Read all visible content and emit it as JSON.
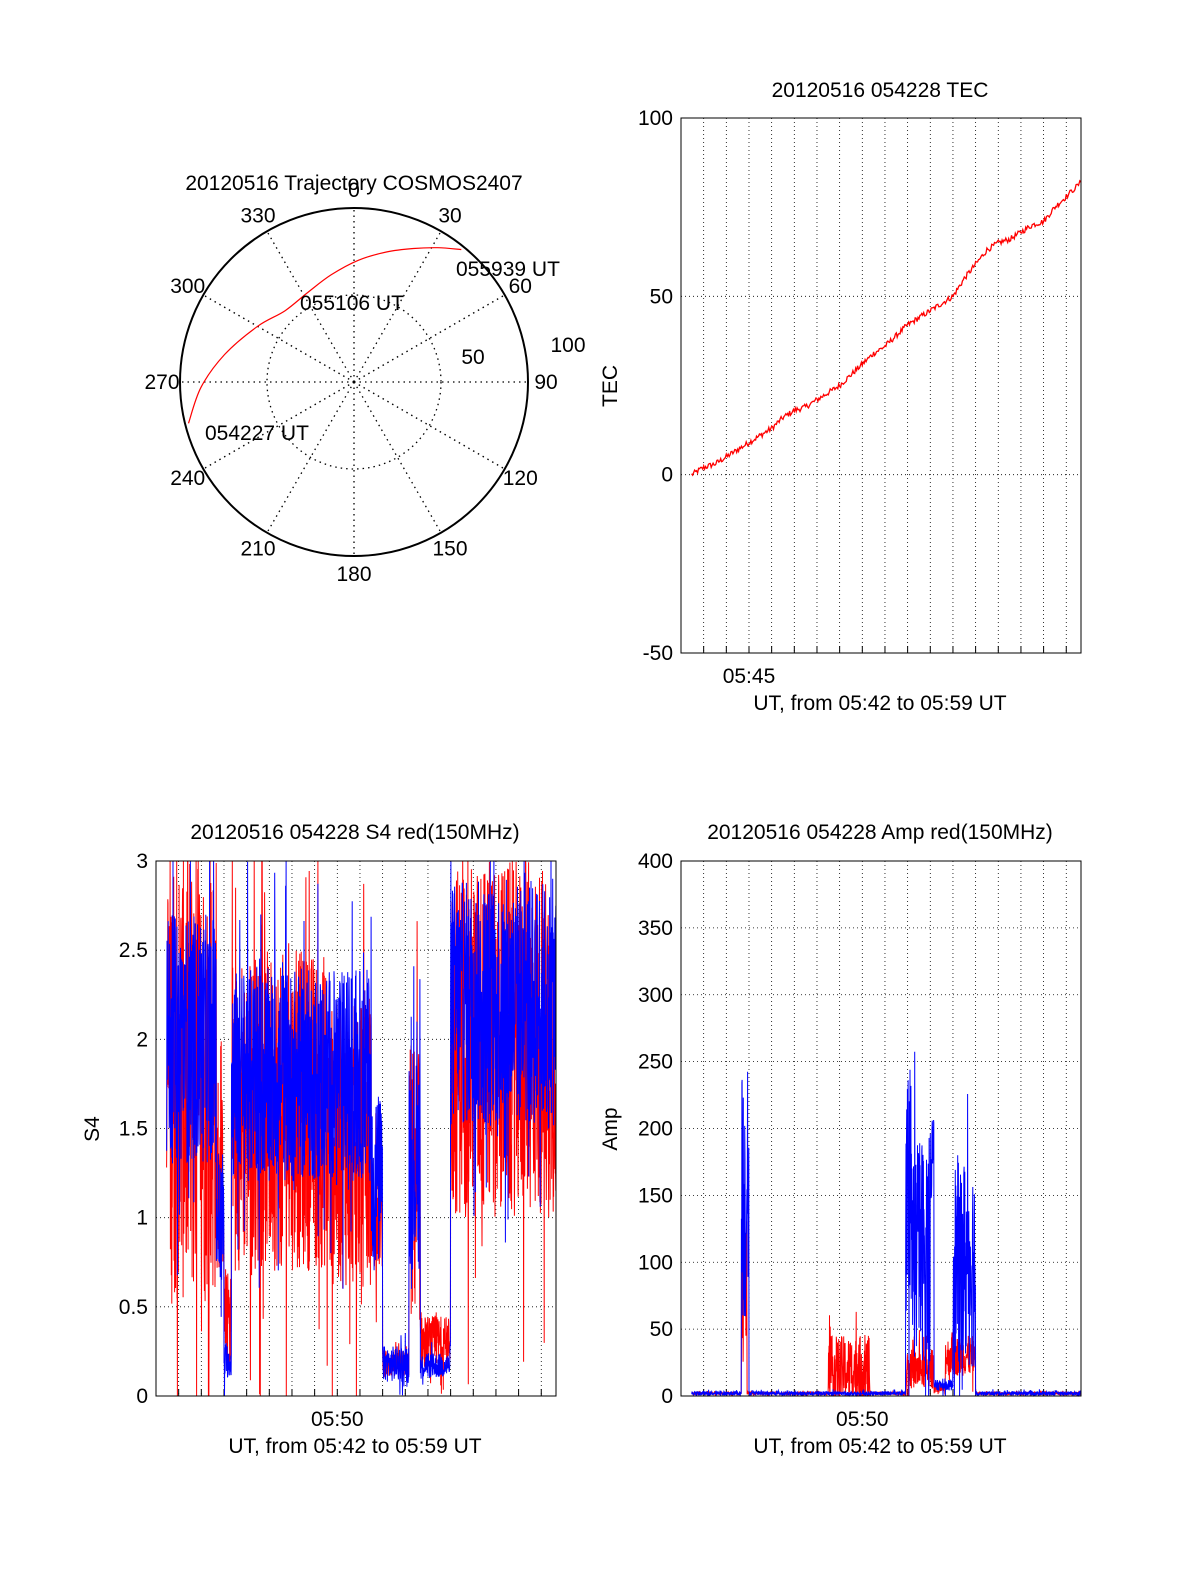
{
  "colors": {
    "red": "#ff0000",
    "blue": "#0000ff",
    "axis": "#000000"
  },
  "chart_data": [
    {
      "id": "trajectory",
      "type": "polar",
      "title": "20120516 Trajectory COSMOS2407",
      "azimuth_labels": [
        "0",
        "30",
        "60",
        "90",
        "120",
        "150",
        "180",
        "210",
        "240",
        "270",
        "300",
        "330"
      ],
      "radial_labels": [
        "50",
        "100"
      ],
      "rlim": [
        0,
        100
      ],
      "grid": true,
      "series": [
        {
          "color": "#ff0000",
          "points": [
            {
              "az": 256,
              "r": 98
            },
            {
              "az": 268,
              "r": 88
            },
            {
              "az": 282,
              "r": 76
            },
            {
              "az": 300,
              "r": 64
            },
            {
              "az": 316,
              "r": 57
            },
            {
              "az": 333,
              "r": 58
            },
            {
              "az": 348,
              "r": 63
            },
            {
              "az": 2,
              "r": 70
            },
            {
              "az": 14,
              "r": 77
            },
            {
              "az": 24,
              "r": 84
            },
            {
              "az": 32,
              "r": 91
            },
            {
              "az": 39,
              "r": 98
            }
          ]
        }
      ],
      "annotations": [
        {
          "text": "055939 UT",
          "az": 39,
          "r": 98
        },
        {
          "text": "055106 UT",
          "az": 316,
          "r": 57
        },
        {
          "text": "054227 UT",
          "az": 256,
          "r": 98
        }
      ]
    },
    {
      "id": "tec",
      "type": "line",
      "title": "20120516 054228 TEC",
      "xlabel": "UT, from 05:42 to 05:59 UT",
      "ylabel": "TEC",
      "xlim": [
        "05:42:00",
        "05:59:39"
      ],
      "ylim": [
        -50,
        100
      ],
      "yticks": [
        "100",
        "50",
        "0",
        "-50"
      ],
      "xtick_labels": [
        {
          "label": "05:45",
          "t": "05:45"
        }
      ],
      "grid": true,
      "series": [
        {
          "color": "#ff0000",
          "t": [
            "05:42:28",
            "05:43:00",
            "05:43:30",
            "05:44:00",
            "05:44:30",
            "05:45:00",
            "05:45:30",
            "05:46:00",
            "05:46:30",
            "05:47:00",
            "05:47:30",
            "05:48:00",
            "05:48:30",
            "05:49:00",
            "05:49:30",
            "05:50:00",
            "05:50:30",
            "05:51:00",
            "05:51:30",
            "05:52:00",
            "05:52:30",
            "05:53:00",
            "05:53:30",
            "05:54:00",
            "05:54:30",
            "05:55:00",
            "05:55:30",
            "05:56:00",
            "05:56:30",
            "05:57:00",
            "05:57:30",
            "05:58:00",
            "05:58:30",
            "05:59:00",
            "05:59:39"
          ],
          "values": [
            0,
            2,
            3,
            5,
            7,
            9,
            11,
            13,
            16,
            18,
            19,
            21,
            23,
            25,
            28,
            31,
            34,
            36,
            39,
            42,
            44,
            46,
            48,
            50,
            55,
            59,
            63,
            65,
            66,
            68,
            70,
            71,
            75,
            78,
            82
          ]
        }
      ]
    },
    {
      "id": "s4",
      "type": "line",
      "title": "20120516 054228 S4 red(150MHz)",
      "xlabel": "UT, from 05:42 to 05:59 UT",
      "ylabel": "S4",
      "xlim": [
        "05:42:00",
        "05:59:39"
      ],
      "ylim": [
        0,
        3
      ],
      "yticks": [
        "3",
        "2.5",
        "2",
        "1.5",
        "1",
        "0.5",
        "0"
      ],
      "xtick_labels": [
        {
          "label": "05:50",
          "t": "05:50"
        }
      ],
      "grid": true,
      "series": [
        {
          "color": "#ff0000",
          "segments": [
            {
              "t": [
                "05:42:28",
                "05:44:40"
              ],
              "base": 1.8,
              "amp": 1.3
            },
            {
              "t": [
                "05:44:40",
                "05:45:00"
              ],
              "base": 1.2,
              "amp": 0.5
            },
            {
              "t": [
                "05:45:00",
                "05:45:20"
              ],
              "base": 0.45,
              "amp": 0.25
            },
            {
              "t": [
                "05:45:20",
                "05:49:30"
              ],
              "base": 1.6,
              "amp": 0.9
            },
            {
              "t": [
                "05:49:30",
                "05:51:30"
              ],
              "base": 1.4,
              "amp": 0.8
            },
            {
              "t": [
                "05:51:30",
                "05:52:00"
              ],
              "base": 1.0,
              "amp": 0.3
            },
            {
              "t": [
                "05:52:00",
                "05:53:10"
              ],
              "base": 0.18,
              "amp": 0.08
            },
            {
              "t": [
                "05:53:10",
                "05:53:40"
              ],
              "base": 1.2,
              "amp": 0.8
            },
            {
              "t": [
                "05:53:40",
                "05:55:00"
              ],
              "base": 0.3,
              "amp": 0.15
            },
            {
              "t": [
                "05:55:00",
                "05:59:39"
              ],
              "base": 2.0,
              "amp": 1.0
            }
          ]
        },
        {
          "color": "#0000ff",
          "segments": [
            {
              "t": [
                "05:42:28",
                "05:44:40"
              ],
              "base": 2.0,
              "amp": 0.7
            },
            {
              "t": [
                "05:44:40",
                "05:45:00"
              ],
              "base": 1.0,
              "amp": 0.4
            },
            {
              "t": [
                "05:45:00",
                "05:45:20"
              ],
              "base": 0.2,
              "amp": 0.1
            },
            {
              "t": [
                "05:45:20",
                "05:49:30"
              ],
              "base": 1.8,
              "amp": 0.6
            },
            {
              "t": [
                "05:49:30",
                "05:51:30"
              ],
              "base": 1.8,
              "amp": 0.6
            },
            {
              "t": [
                "05:51:30",
                "05:52:00"
              ],
              "base": 1.2,
              "amp": 0.5
            },
            {
              "t": [
                "05:52:00",
                "05:53:10"
              ],
              "base": 0.18,
              "amp": 0.1
            },
            {
              "t": [
                "05:53:10",
                "05:53:40"
              ],
              "base": 1.3,
              "amp": 0.6
            },
            {
              "t": [
                "05:53:40",
                "05:55:00"
              ],
              "base": 0.17,
              "amp": 0.07
            },
            {
              "t": [
                "05:55:00",
                "05:59:39"
              ],
              "base": 2.2,
              "amp": 0.7
            }
          ]
        }
      ]
    },
    {
      "id": "amp",
      "type": "line",
      "title": "20120516 054228 Amp red(150MHz)",
      "xlabel": "UT, from 05:42 to 05:59 UT",
      "ylabel": "Amp",
      "xlim": [
        "05:42:00",
        "05:59:39"
      ],
      "ylim": [
        0,
        400
      ],
      "yticks": [
        "400",
        "350",
        "300",
        "250",
        "200",
        "150",
        "100",
        "50",
        "0"
      ],
      "xtick_labels": [
        {
          "label": "05:50",
          "t": "05:50"
        }
      ],
      "grid": true,
      "series": [
        {
          "color": "#ff0000",
          "segments": [
            {
              "t": [
                "05:42:28",
                "05:44:40"
              ],
              "base": 2,
              "amp": 1
            },
            {
              "t": [
                "05:44:40",
                "05:44:55"
              ],
              "base": 80,
              "amp": 60
            },
            {
              "t": [
                "05:44:55",
                "05:48:30"
              ],
              "base": 2,
              "amp": 1
            },
            {
              "t": [
                "05:48:30",
                "05:50:20"
              ],
              "base": 20,
              "amp": 25
            },
            {
              "t": [
                "05:50:20",
                "05:51:55"
              ],
              "base": 2,
              "amp": 1
            },
            {
              "t": [
                "05:51:55",
                "05:53:10"
              ],
              "base": 20,
              "amp": 15
            },
            {
              "t": [
                "05:53:10",
                "05:53:40"
              ],
              "base": 5,
              "amp": 3
            },
            {
              "t": [
                "05:53:40",
                "05:55:00"
              ],
              "base": 30,
              "amp": 15
            },
            {
              "t": [
                "05:55:00",
                "05:59:39"
              ],
              "base": 2,
              "amp": 1
            }
          ]
        },
        {
          "color": "#0000ff",
          "segments": [
            {
              "t": [
                "05:42:28",
                "05:44:40"
              ],
              "base": 2,
              "amp": 1.5
            },
            {
              "t": [
                "05:44:40",
                "05:45:00"
              ],
              "base": 150,
              "amp": 100
            },
            {
              "t": [
                "05:45:00",
                "05:51:55"
              ],
              "base": 2,
              "amp": 1.5
            },
            {
              "t": [
                "05:51:55",
                "05:53:00"
              ],
              "base": 110,
              "amp": 85
            },
            {
              "t": [
                "05:53:00",
                "05:53:10"
              ],
              "base": 180,
              "amp": 35
            },
            {
              "t": [
                "05:53:10",
                "05:54:00"
              ],
              "base": 8,
              "amp": 4
            },
            {
              "t": [
                "05:54:00",
                "05:55:00"
              ],
              "base": 100,
              "amp": 80
            },
            {
              "t": [
                "05:55:00",
                "05:59:39"
              ],
              "base": 2,
              "amp": 1.5
            }
          ]
        }
      ]
    }
  ]
}
